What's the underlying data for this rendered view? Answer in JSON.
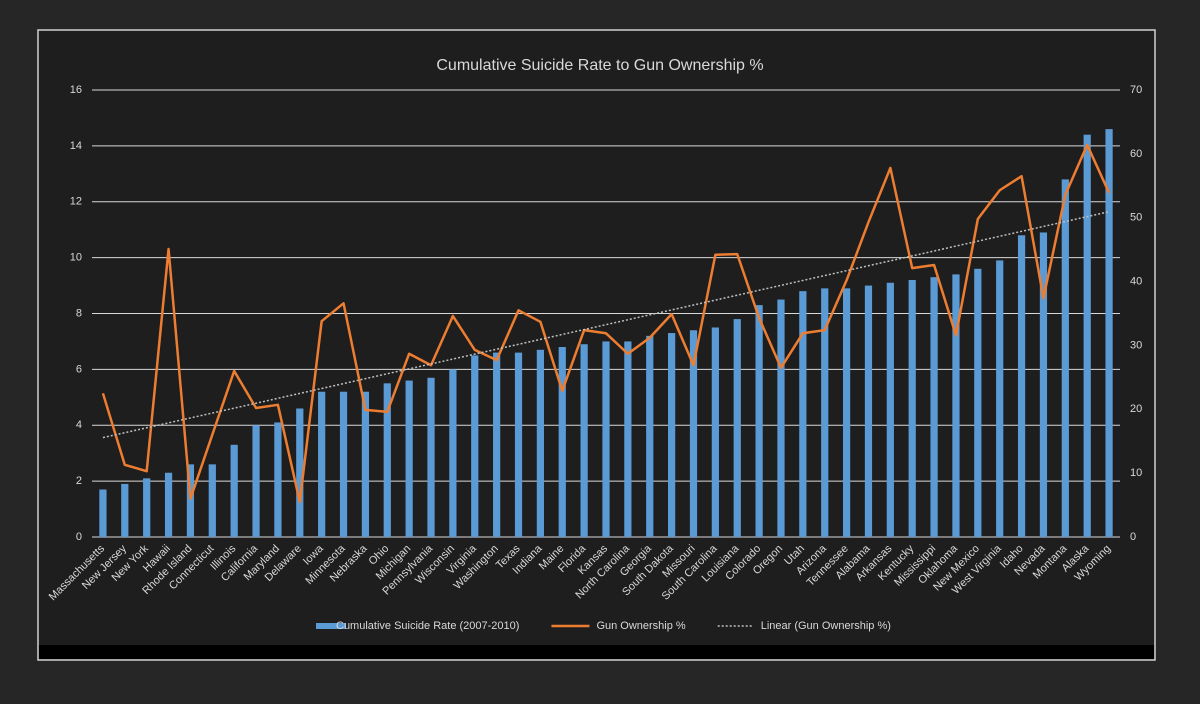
{
  "chart_data": {
    "type": "bar",
    "title": "Cumulative Suicide Rate to Gun Ownership %",
    "categories": [
      "Massachusetts",
      "New Jersey",
      "New York",
      "Hawaii",
      "Rhode Island",
      "Connecticut",
      "Illinois",
      "California",
      "Maryland",
      "Delaware",
      "Iowa",
      "Minnesota",
      "Nebraska",
      "Ohio",
      "Michigan",
      "Pennsylvania",
      "Wisconsin",
      "Virginia",
      "Washington",
      "Texas",
      "Indiana",
      "Maine",
      "Florida",
      "Kansas",
      "North Carolina",
      "Georgia",
      "South Dakota",
      "Missouri",
      "South Carolina",
      "Louisiana",
      "Colorado",
      "Oregon",
      "Utah",
      "Arizona",
      "Tennessee",
      "Alabama",
      "Arkansas",
      "Kentucky",
      "Mississippi",
      "Oklahoma",
      "New Mexico",
      "West Virginia",
      "Idaho",
      "Nevada",
      "Montana",
      "Alaska",
      "Wyoming"
    ],
    "series": [
      {
        "name": "Cumulative Suicide Rate (2007-2010)",
        "type": "bar",
        "axis": "y",
        "color": "#5b9bd5",
        "values": [
          1.7,
          1.9,
          2.1,
          2.3,
          2.6,
          2.6,
          3.3,
          4.0,
          4.1,
          4.6,
          5.2,
          5.2,
          5.2,
          5.5,
          5.6,
          5.7,
          6.0,
          6.5,
          6.6,
          6.6,
          6.7,
          6.8,
          6.9,
          7.0,
          7.0,
          7.2,
          7.3,
          7.4,
          7.5,
          7.8,
          8.3,
          8.5,
          8.8,
          8.9,
          8.9,
          9.0,
          9.1,
          9.2,
          9.3,
          9.4,
          9.6,
          9.9,
          10.8,
          10.9,
          12.8,
          14.4,
          14.6
        ]
      },
      {
        "name": "Gun Ownership %",
        "type": "line",
        "axis": "y2",
        "color": "#ed7d31",
        "values": [
          22.5,
          11.3,
          10.3,
          45.1,
          6.0,
          16.0,
          26.0,
          20.2,
          20.7,
          5.5,
          33.8,
          36.6,
          19.9,
          19.6,
          28.7,
          26.9,
          34.6,
          29.3,
          27.7,
          35.5,
          33.7,
          22.9,
          32.4,
          31.9,
          28.7,
          31.2,
          34.9,
          26.9,
          44.2,
          44.3,
          34.3,
          26.5,
          31.9,
          32.4,
          40.2,
          49.3,
          57.8,
          42.1,
          42.6,
          31.6,
          49.8,
          54.3,
          56.5,
          37.4,
          53.6,
          61.4,
          53.9
        ]
      }
    ],
    "trendline": {
      "name": "Linear (Gun Ownership %)",
      "color": "#bfbfbf"
    },
    "ylim": [
      0,
      16
    ],
    "yticks": [
      0,
      2,
      4,
      6,
      8,
      10,
      12,
      14,
      16
    ],
    "y2lim": [
      0,
      70
    ],
    "y2ticks": [
      0,
      10,
      20,
      30,
      40,
      50,
      60,
      70
    ],
    "grid": true
  }
}
